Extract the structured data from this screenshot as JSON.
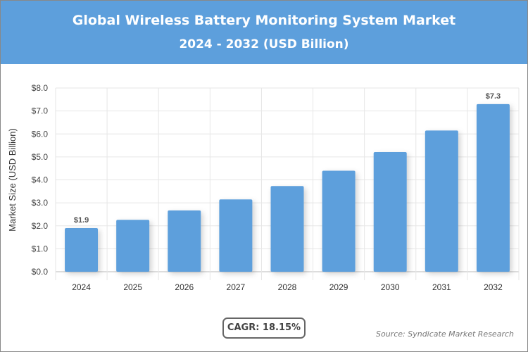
{
  "chart_data": {
    "type": "bar",
    "title": "Global Wireless Battery Monitoring System Market",
    "subtitle": "2024 - 2032 (USD Billion)",
    "ylabel": "Market Size (USD Billion)",
    "xlabel": "",
    "categories": [
      "2024",
      "2025",
      "2026",
      "2027",
      "2028",
      "2029",
      "2030",
      "2031",
      "2032"
    ],
    "values": [
      1.9,
      2.26,
      2.67,
      3.15,
      3.73,
      4.4,
      5.21,
      6.15,
      7.3
    ],
    "data_labels": {
      "0": "$1.9",
      "8": "$7.3"
    },
    "ylim": [
      0,
      8
    ],
    "yticks": [
      "$0.0",
      "$1.0",
      "$2.0",
      "$3.0",
      "$4.0",
      "$5.0",
      "$6.0",
      "$7.0",
      "$8.0"
    ],
    "grid": true,
    "bar_color": "#5d9fdc",
    "header_color": "#5d9fdc"
  },
  "cagr": "CAGR: 18.15%",
  "source": "Source: Syndicate Market Research"
}
